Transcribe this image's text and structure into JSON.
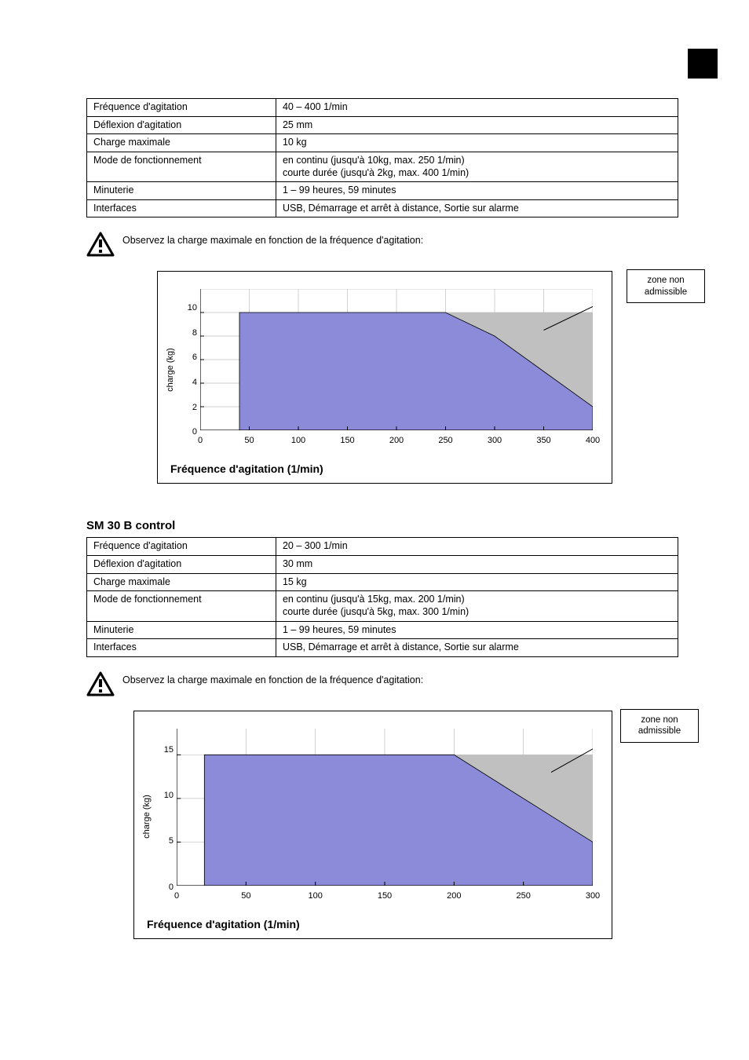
{
  "colors": {
    "fill": "#8b8bd9",
    "grid": "#bfbfbf",
    "forbidden": "#c0c0c0",
    "border": "#000000",
    "bg": "#ffffff"
  },
  "table1": {
    "rows": [
      [
        "Fréquence d'agitation",
        "40 – 400 1/min"
      ],
      [
        "Déflexion d'agitation",
        "25 mm"
      ],
      [
        "Charge maximale",
        "10 kg"
      ],
      [
        "Mode de fonctionnement",
        "en continu (jusqu'à 10kg, max. 250 1/min)\ncourte durée (jusqu'à 2kg, max. 400 1/min)"
      ],
      [
        "Minuterie",
        "1 – 99 heures, 59 minutes"
      ],
      [
        "Interfaces",
        "USB, Démarrage et arrêt à distance, Sortie sur alarme"
      ]
    ]
  },
  "warn1": "Observez la charge maximale en fonction de la fréquence d'agitation:",
  "chart1": {
    "type": "area",
    "y_title": "charge (kg)",
    "x_caption": "Fréquence d'agitation (1/min)",
    "callout": "zone non\nadmissible",
    "x_ticks": [
      0,
      50,
      100,
      150,
      200,
      250,
      300,
      350,
      400
    ],
    "y_ticks": [
      0,
      2,
      4,
      6,
      8,
      10
    ],
    "xlim": [
      0,
      400
    ],
    "ylim": [
      0,
      12
    ],
    "allowed_polygon": [
      [
        40,
        0
      ],
      [
        40,
        10
      ],
      [
        250,
        10
      ],
      [
        300,
        8
      ],
      [
        350,
        5
      ],
      [
        400,
        2
      ],
      [
        400,
        0
      ]
    ],
    "forbidden_polygon": [
      [
        250,
        10
      ],
      [
        400,
        10
      ],
      [
        400,
        2
      ],
      [
        350,
        5
      ],
      [
        300,
        8
      ]
    ],
    "grid_y": [
      2,
      4,
      6,
      8,
      10,
      12
    ],
    "grid_x": [
      50,
      100,
      150,
      200,
      250,
      300,
      350,
      400
    ],
    "callout_pointer": {
      "from": [
        350,
        8.5
      ],
      "to_box": true
    }
  },
  "heading2": "SM 30 B control",
  "table2": {
    "rows": [
      [
        "Fréquence d'agitation",
        "20 – 300 1/min"
      ],
      [
        "Déflexion d'agitation",
        "30 mm"
      ],
      [
        "Charge maximale",
        "15 kg"
      ],
      [
        "Mode de fonctionnement",
        "en continu (jusqu'à 15kg, max. 200 1/min)\ncourte durée (jusqu'à 5kg, max. 300 1/min)"
      ],
      [
        "Minuterie",
        "1 – 99 heures, 59 minutes"
      ],
      [
        "Interfaces",
        "USB, Démarrage et arrêt à distance, Sortie sur alarme"
      ]
    ]
  },
  "warn2": "Observez la charge maximale en fonction de la fréquence d'agitation:",
  "chart2": {
    "type": "area",
    "y_title": "charge (kg)",
    "x_caption": "Fréquence d'agitation (1/min)",
    "callout": "zone non\nadmissible",
    "x_ticks": [
      0,
      50,
      100,
      150,
      200,
      250,
      300
    ],
    "y_ticks": [
      0,
      5,
      10,
      15
    ],
    "xlim": [
      0,
      300
    ],
    "ylim": [
      0,
      18
    ],
    "allowed_polygon": [
      [
        20,
        0
      ],
      [
        20,
        15
      ],
      [
        200,
        15
      ],
      [
        300,
        5
      ],
      [
        300,
        0
      ]
    ],
    "forbidden_polygon": [
      [
        200,
        15
      ],
      [
        300,
        15
      ],
      [
        300,
        5
      ]
    ],
    "grid_y": [
      5,
      10,
      15
    ],
    "grid_x": [
      50,
      100,
      150,
      200,
      250,
      300
    ],
    "callout_pointer": {
      "from": [
        270,
        13
      ],
      "to_box": true
    }
  }
}
